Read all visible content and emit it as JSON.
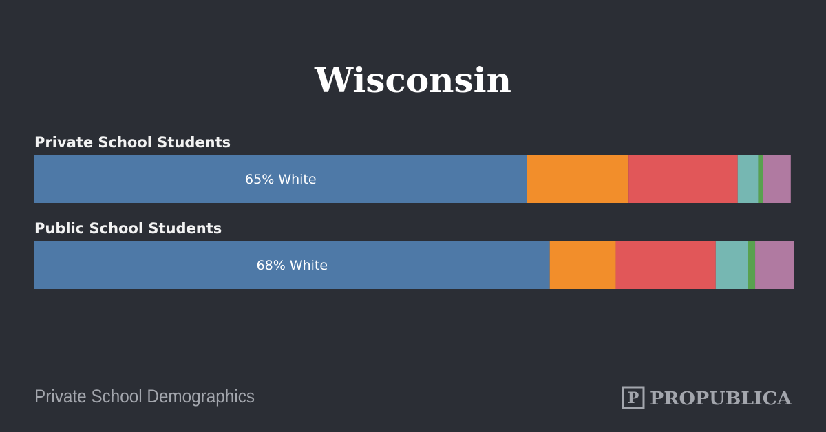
{
  "chart_data": {
    "type": "stacked-bar",
    "title": "Wisconsin",
    "categories": [
      "Private School Students",
      "Public School Students"
    ],
    "xlim": [
      0,
      100
    ],
    "series": [
      {
        "color": "#4e79a7",
        "values": [
          65,
          68
        ],
        "value_labels": [
          "65% White",
          "68% White"
        ]
      },
      {
        "color": "#f28e2b",
        "values": [
          13.4,
          8.7
        ]
      },
      {
        "color": "#e15759",
        "values": [
          14.4,
          13.2
        ]
      },
      {
        "color": "#76b7b2",
        "values": [
          2.7,
          4.2
        ]
      },
      {
        "color": "#59a14f",
        "values": [
          0.6,
          1.0
        ]
      },
      {
        "color": "#b07aa1",
        "values": [
          3.7,
          5.1
        ]
      }
    ]
  },
  "footer": {
    "source": "Private School Demographics",
    "logo": "PROPUBLICA"
  }
}
